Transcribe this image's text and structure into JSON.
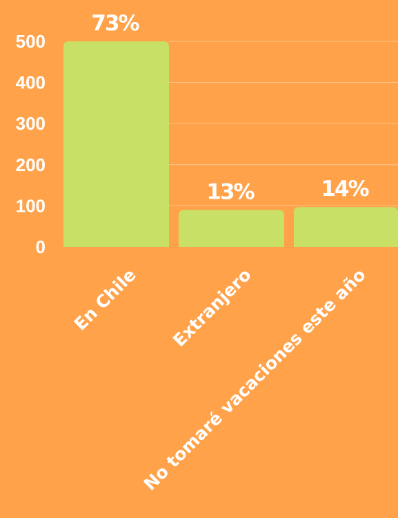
{
  "chart_data": {
    "type": "bar",
    "categories": [
      "En Chile",
      "Extranjero",
      "No tomaré vacaciones este año"
    ],
    "values": [
      500,
      90,
      97
    ],
    "data_labels": [
      "73%",
      "13%",
      "14%"
    ],
    "yticks": [
      0,
      100,
      200,
      300,
      400,
      500
    ],
    "ylim": [
      0,
      500
    ],
    "grid": true,
    "colors": {
      "background": "#FFA24A",
      "bar": "#C8E066",
      "text": "#FFFFFF",
      "grid": "#FFC58A"
    }
  }
}
